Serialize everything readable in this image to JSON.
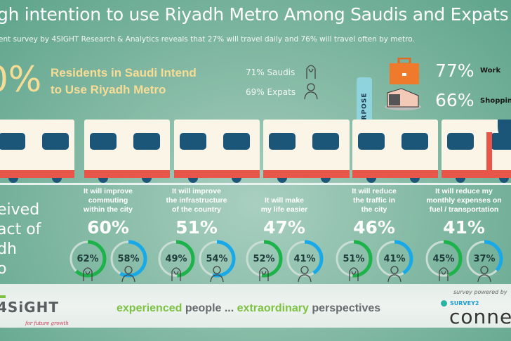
{
  "header": {
    "title": "gh intention to use Riyadh Metro Among Saudis and Expats",
    "subtitle": "ent survey by 4SIGHT Research & Analytics reveals that 27% will travel daily and 76% will travel often by metro."
  },
  "intent": {
    "big_pct": "0%",
    "line1": "Residents in Saudi Intend",
    "line2": "to Use Riyadh Metro",
    "saudis": "71% Saudis",
    "expats": "69% Expats"
  },
  "purpose": {
    "label": "PURPOSE",
    "items": [
      {
        "pct": "77%",
        "label": "Work",
        "icon": "briefcase-icon"
      },
      {
        "pct": "66%",
        "label": "Shoppin",
        "icon": "shopping-mall-icon"
      }
    ]
  },
  "impact": {
    "heading_lines": [
      "eived",
      "act of",
      "dh",
      "o"
    ],
    "items": [
      {
        "l1": "It will improve",
        "l2": "commuting",
        "l3": "within the city",
        "total": "60%",
        "saudi": 62,
        "expat": 58
      },
      {
        "l1": "It will improve",
        "l2": "the infrastructure",
        "l3": "of the country",
        "total": "51%",
        "saudi": 49,
        "expat": 54
      },
      {
        "l1": "",
        "l2": "It will make",
        "l3": "my life easier",
        "total": "47%",
        "saudi": 52,
        "expat": 41
      },
      {
        "l1": "It will reduce",
        "l2": "the traffic in",
        "l3": "the city",
        "total": "46%",
        "saudi": 51,
        "expat": 41
      },
      {
        "l1": "It will reduce my",
        "l2": "monthly expenses on",
        "l3": "fuel / transportation",
        "total": "41%",
        "saudi": 45,
        "expat": 37
      }
    ]
  },
  "colors": {
    "saudi": "#1db34a",
    "expat": "#1aa9e8",
    "track": "#c9ddd5"
  },
  "footer": {
    "logo": "4SiGHT",
    "tagline": "for future growth",
    "slogan": {
      "w1": "experienced",
      "w2": "people ...",
      "w3": "extraordinary",
      "w4": "perspectives"
    },
    "powered": "survey powered by",
    "brand_top": "SURVEY2",
    "brand_bottom": "conne"
  }
}
